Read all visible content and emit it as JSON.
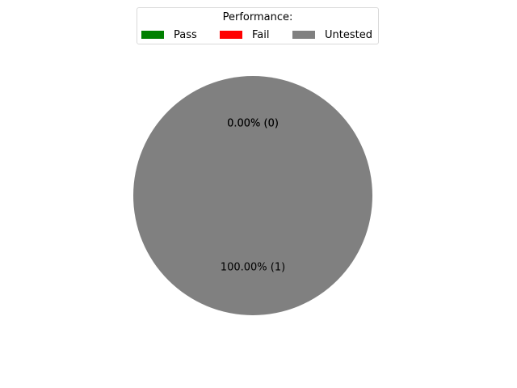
{
  "chart_data": {
    "type": "pie",
    "legend": {
      "title": "Performance:",
      "placement": "top-center",
      "columns": 3
    },
    "slices": [
      {
        "name": "Pass",
        "value": 0,
        "percent_label": "0.00%",
        "count_label": "(0)",
        "color": "#008000"
      },
      {
        "name": "Fail",
        "value": 0,
        "percent_label": "0.00%",
        "count_label": "(0)",
        "color": "#ff0000"
      },
      {
        "name": "Untested",
        "value": 1,
        "percent_label": "100.00%",
        "count_label": "(1)",
        "color": "#808080"
      }
    ]
  }
}
